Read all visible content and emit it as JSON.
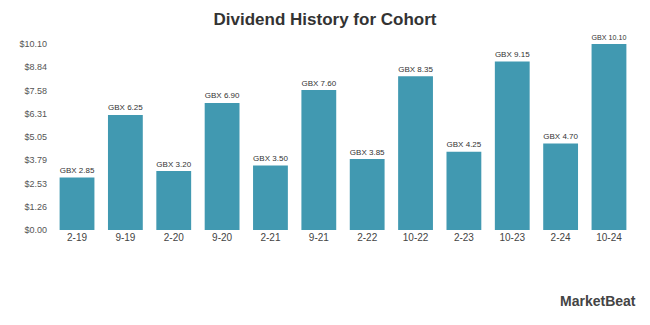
{
  "chart_data": {
    "type": "bar",
    "title": "Dividend History for Cohort",
    "categories": [
      "2-19",
      "9-19",
      "2-20",
      "9-20",
      "2-21",
      "9-21",
      "2-22",
      "10-22",
      "2-23",
      "10-23",
      "2-24",
      "10-24"
    ],
    "values": [
      2.85,
      6.25,
      3.2,
      6.9,
      3.5,
      7.6,
      3.85,
      8.35,
      4.25,
      9.15,
      4.7,
      10.1
    ],
    "value_labels": [
      "GBX 2.85",
      "GBX 6.25",
      "GBX 3.20",
      "GBX 6.90",
      "GBX 3.50",
      "GBX 7.60",
      "GBX 3.85",
      "GBX 8.35",
      "GBX 4.25",
      "GBX 9.15",
      "GBX 4.70",
      "GBX 10.10"
    ],
    "data_labels": true,
    "color": "#4199b1",
    "ylim": [
      0,
      10.1
    ],
    "yticks": [
      {
        "value": 0,
        "label": "$0.00"
      },
      {
        "value": 1.2625,
        "label": "$1.26"
      },
      {
        "value": 2.525,
        "label": "$2.53"
      },
      {
        "value": 3.7875,
        "label": "$3.79"
      },
      {
        "value": 5.05,
        "label": "$5.05"
      },
      {
        "value": 6.3125,
        "label": "$6.31"
      },
      {
        "value": 7.575,
        "label": "$7.58"
      },
      {
        "value": 8.8375,
        "label": "$8.84"
      },
      {
        "value": 10.1,
        "label": "$10.10"
      }
    ],
    "grid": false,
    "annotations": [
      "MarketBeat"
    ]
  }
}
